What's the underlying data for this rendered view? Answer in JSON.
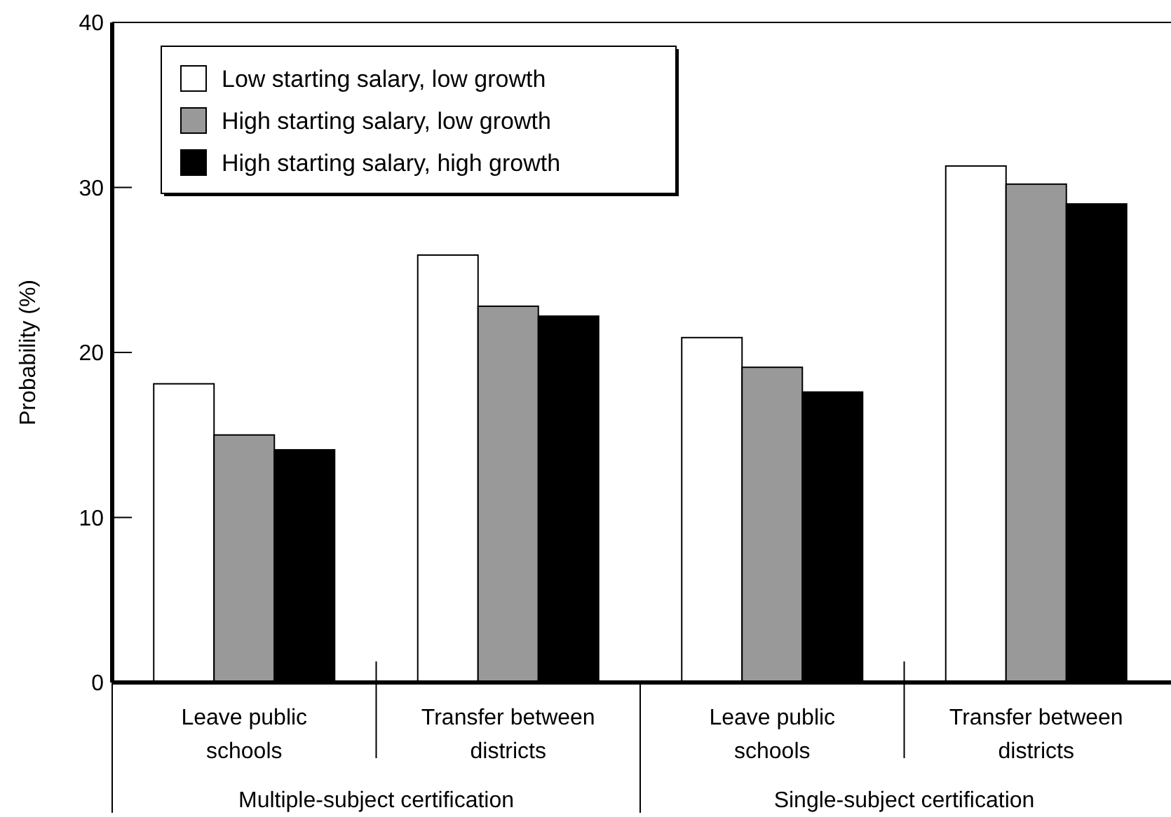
{
  "chart_data": {
    "type": "bar",
    "ylabel": "Probability (%)",
    "categories": [
      "Leave public schools",
      "Transfer between districts",
      "Leave public schools",
      "Transfer between districts"
    ],
    "series": [
      {
        "name": "Low starting salary, low growth",
        "color": "#ffffff",
        "values": [
          18.1,
          25.9,
          20.9,
          31.3
        ]
      },
      {
        "name": "High starting salary, low growth",
        "color": "#999999",
        "values": [
          15.0,
          22.8,
          19.1,
          30.2
        ]
      },
      {
        "name": "High starting salary, high growth",
        "color": "#000000",
        "values": [
          14.1,
          22.2,
          17.6,
          29.0
        ]
      }
    ],
    "ylim": [
      0,
      40
    ],
    "yticks": [
      0,
      10,
      20,
      30,
      40
    ],
    "legend": "top left",
    "annotations": [
      "Multiple-subject certification",
      "Single-subject certification"
    ]
  }
}
